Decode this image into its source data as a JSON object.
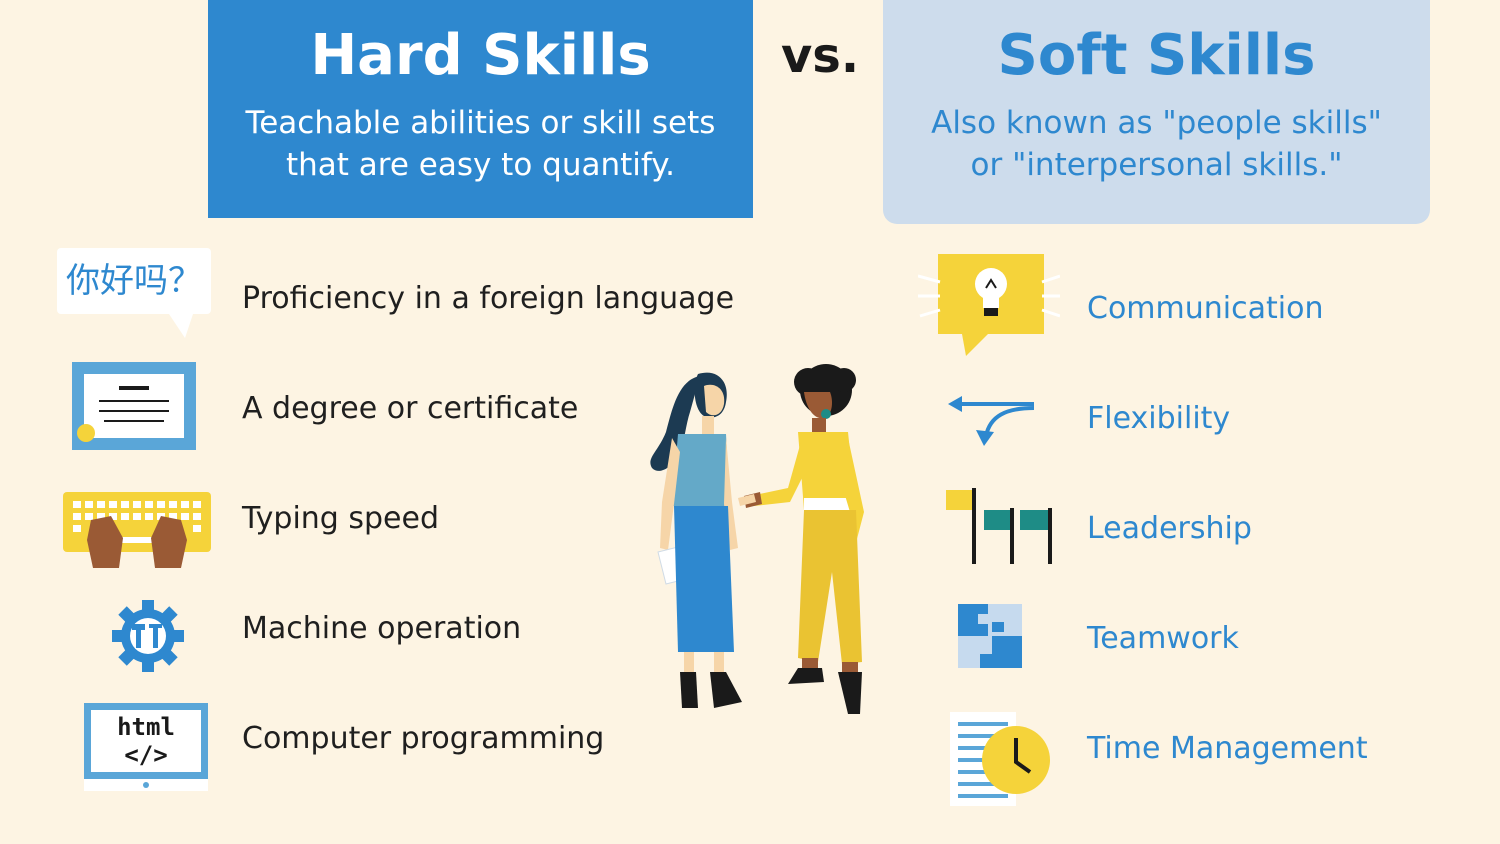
{
  "hard": {
    "title": "Hard Skills",
    "subtitle_line1": "Teachable abilities or skill sets",
    "subtitle_line2": "that are easy to quantify.",
    "items": [
      {
        "label": "Proficiency in a foreign language",
        "icon": "speech-bubble-icon",
        "bubble_text": "你好吗？"
      },
      {
        "label": "A degree or certificate",
        "icon": "certificate-icon"
      },
      {
        "label": "Typing speed",
        "icon": "keyboard-hands-icon"
      },
      {
        "label": "Machine operation",
        "icon": "gear-tools-icon"
      },
      {
        "label": "Computer programming",
        "icon": "monitor-code-icon",
        "screen_line1": "html",
        "screen_line2": "</>"
      }
    ]
  },
  "vs": "vs.",
  "soft": {
    "title": "Soft Skills",
    "subtitle_line1": "Also known as \"people skills\"",
    "subtitle_line2": "or \"interpersonal skills.\"",
    "items": [
      {
        "label": "Communication",
        "icon": "lightbulb-bubble-icon"
      },
      {
        "label": "Flexibility",
        "icon": "curved-arrows-icon"
      },
      {
        "label": "Leadership",
        "icon": "flags-icon"
      },
      {
        "label": "Teamwork",
        "icon": "puzzle-icon"
      },
      {
        "label": "Time Management",
        "icon": "clock-document-icon"
      }
    ]
  },
  "colors": {
    "background": "#fdf4e3",
    "blue": "#2e88cf",
    "light_blue": "#cddcec",
    "yellow": "#f5d33a",
    "teal": "#1e8c86"
  }
}
